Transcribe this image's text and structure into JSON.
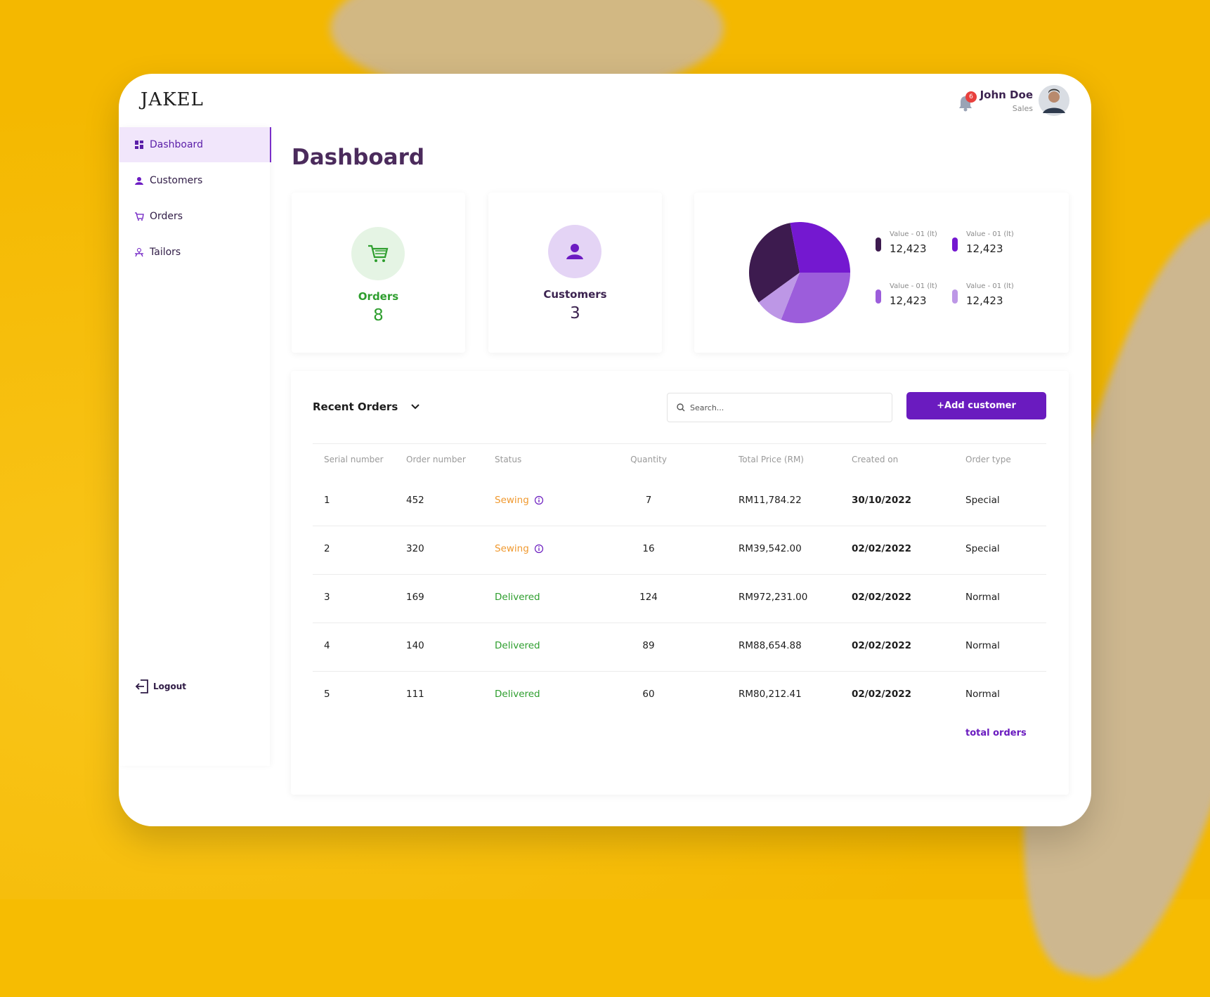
{
  "header": {
    "logo": "JAKEL",
    "notifications": 6,
    "user_name": "John Doe",
    "user_role": "Sales"
  },
  "sidebar": {
    "items": [
      "Dashboard",
      "Customers",
      "Orders",
      "Tailors"
    ],
    "logout": "Logout"
  },
  "page_title": "Dashboard",
  "stats": [
    {
      "label": "Orders",
      "value": 8,
      "color": "#2e9e2e",
      "circle": "#e5f4e4"
    },
    {
      "label": "Customers",
      "value": 3,
      "color": "#3c2350",
      "circle": "#e4d4f5"
    }
  ],
  "pie": {
    "slices": [
      {
        "label": "Value - 01 (lt)",
        "amount": "12,423",
        "color": "#3d1b4f",
        "share": 32
      },
      {
        "label": "Value - 01 (lt)",
        "amount": "12,423",
        "color": "#7418d0",
        "share": 28
      },
      {
        "label": "Value - 01 (lt)",
        "amount": "12,423",
        "color": "#9c5ddb",
        "share": 31
      },
      {
        "label": "Value - 01 (lt)",
        "amount": "12,423",
        "color": "#bd97e6",
        "share": 9
      }
    ]
  },
  "orders": {
    "title": "Recent Orders",
    "search_placeholder": "Search...",
    "button": "+Add customer",
    "columns": [
      "Serial number",
      "Order number",
      "Status",
      "Quantity",
      "Total Price (RM)",
      "Created on",
      "Order type"
    ],
    "rows": [
      {
        "cells": [
          "1",
          "452",
          "Sewing",
          "7",
          "RM11,784.22",
          "30/10/2022",
          "Special"
        ],
        "status_color": "#f0992f",
        "info_icon": true
      },
      {
        "cells": [
          "2",
          "320",
          "Sewing",
          "16",
          "RM39,542.00",
          "02/02/2022",
          "Special"
        ],
        "status_color": "#f0992f",
        "info_icon": true
      },
      {
        "cells": [
          "3",
          "169",
          "Delivered",
          "124",
          "RM972,231.00",
          "02/02/2022",
          "Normal"
        ],
        "status_color": "#2e9e2e",
        "info_icon": false
      },
      {
        "cells": [
          "4",
          "140",
          "Delivered",
          "89",
          "RM88,654.88",
          "02/02/2022",
          "Normal"
        ],
        "status_color": "#2e9e2e",
        "info_icon": false
      },
      {
        "cells": [
          "5",
          "111",
          "Delivered",
          "60",
          "RM80,212.41",
          "02/02/2022",
          "Normal"
        ],
        "status_color": "#2e9e2e",
        "info_icon": false
      }
    ],
    "footer_link": "total orders"
  }
}
